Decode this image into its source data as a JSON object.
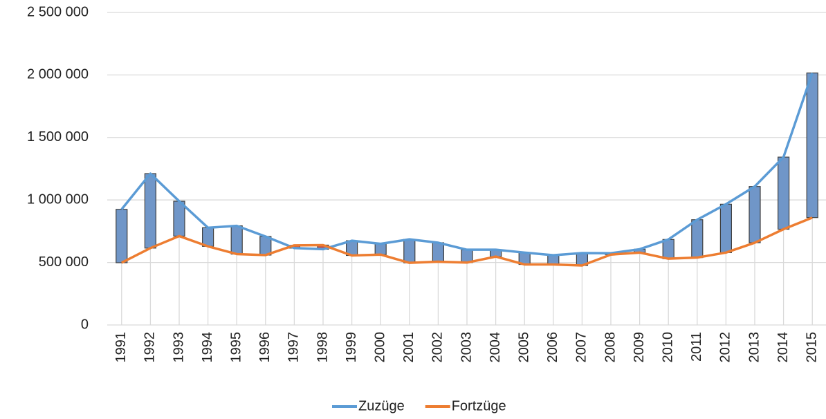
{
  "chart_data": {
    "type": "line",
    "categories": [
      "1991",
      "1992",
      "1993",
      "1994",
      "1995",
      "1996",
      "1997",
      "1998",
      "1999",
      "2000",
      "2001",
      "2002",
      "2003",
      "2004",
      "2005",
      "2006",
      "2007",
      "2008",
      "2009",
      "2010",
      "2011",
      "2012",
      "2013",
      "2014",
      "2015"
    ],
    "series": [
      {
        "name": "Zuzüge",
        "color": "#5b9bd5",
        "values": [
          925000,
          1211000,
          990000,
          778000,
          793000,
          708000,
          615000,
          606000,
          674000,
          649000,
          685000,
          658000,
          602000,
          602000,
          579000,
          558000,
          575000,
          574000,
          606000,
          684000,
          842000,
          966000,
          1108000,
          1343000,
          2016000
        ]
      },
      {
        "name": "Fortzüge",
        "color": "#ed7d31",
        "values": [
          498000,
          615000,
          711000,
          629000,
          567000,
          559000,
          637000,
          639000,
          556000,
          563000,
          497000,
          506000,
          499000,
          547000,
          484000,
          484000,
          476000,
          563000,
          579000,
          530000,
          539000,
          579000,
          658000,
          766000,
          859000
        ]
      }
    ],
    "up_down_bars": true,
    "up_bar_color": "#7096c8",
    "down_bar_color": "#c0504d",
    "ylim": [
      0,
      2500000
    ],
    "yticks": [
      0,
      {
        "value": 500000,
        "label": "500 000"
      },
      {
        "value": 1000000,
        "label": "1 000 000"
      },
      {
        "value": 1500000,
        "label": "1 500 000"
      },
      {
        "value": 2000000,
        "label": "2 000 000"
      },
      {
        "value": 2500000,
        "label": "2 500 000"
      }
    ],
    "grid": true,
    "legend": "bottom"
  }
}
